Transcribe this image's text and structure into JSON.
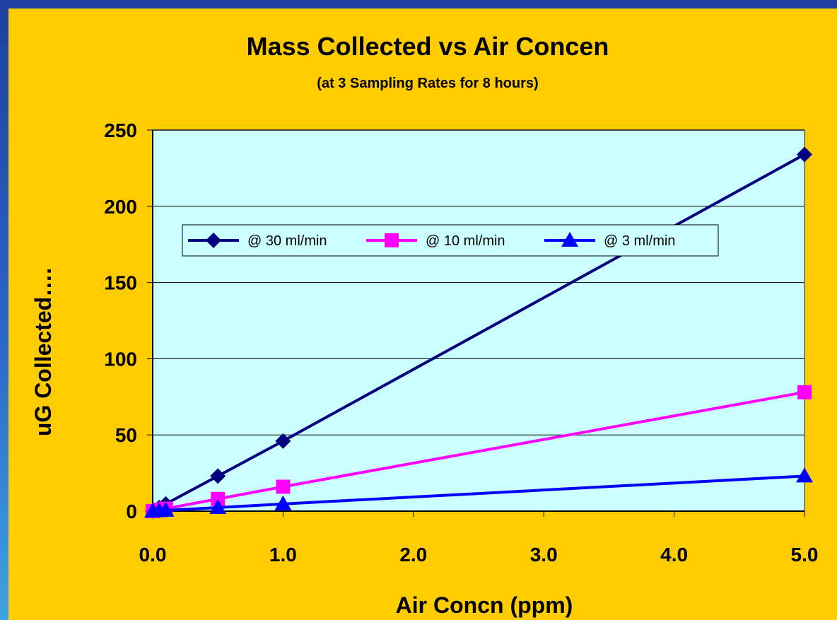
{
  "chart_data": {
    "type": "line",
    "title": "Mass Collected vs Air Concen",
    "subtitle": "(at 3 Sampling Rates for 8 hours)",
    "xlabel": "Air Concn (ppm)",
    "ylabel": "uG Collected….",
    "xlim": [
      0,
      5
    ],
    "ylim": [
      0,
      250
    ],
    "x_ticks": [
      "0.0",
      "1.0",
      "2.0",
      "3.0",
      "4.0",
      "5.0"
    ],
    "y_ticks": [
      "0",
      "50",
      "100",
      "150",
      "200",
      "250"
    ],
    "grid": "horizontal",
    "legend_position": "top-left inside plot",
    "plot_background": "#ccffff",
    "series": [
      {
        "name": "@ 30 ml/min",
        "color": "#000080",
        "marker": "diamond",
        "x": [
          0.0,
          0.05,
          0.1,
          0.5,
          1.0,
          5.0
        ],
        "y": [
          0,
          2.3,
          4.7,
          23,
          46,
          234
        ]
      },
      {
        "name": "@ 10 ml/min",
        "color": "#ff00ff",
        "marker": "square",
        "x": [
          0.0,
          0.05,
          0.1,
          0.5,
          1.0,
          5.0
        ],
        "y": [
          0,
          0.8,
          1.6,
          8,
          16,
          78
        ]
      },
      {
        "name": "@ 3 ml/min",
        "color": "#0000ff",
        "marker": "triangle",
        "x": [
          0.0,
          0.05,
          0.1,
          0.5,
          1.0,
          5.0
        ],
        "y": [
          0,
          0.25,
          0.5,
          2.3,
          4.7,
          23
        ]
      }
    ]
  }
}
